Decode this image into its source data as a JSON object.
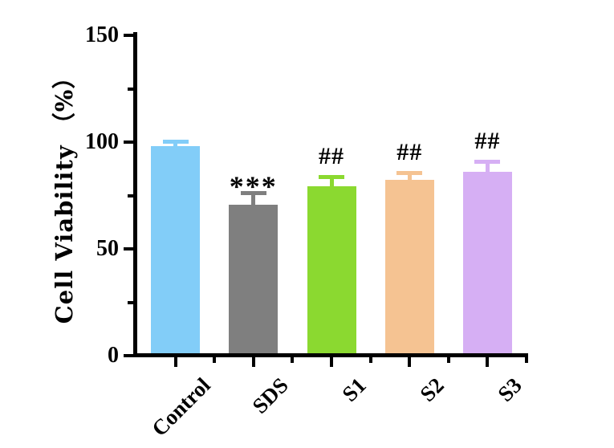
{
  "chart_data": {
    "type": "bar",
    "title": "",
    "ylabel": "Cell Viability （%）",
    "xlabel": "",
    "ylim": [
      0,
      150
    ],
    "yticks_major": [
      0,
      50,
      100,
      150
    ],
    "yticks_minor": [
      25,
      75,
      125
    ],
    "categories": [
      "Control",
      "SDS",
      "S1",
      "S2",
      "S3"
    ],
    "values": [
      98,
      70.5,
      79.5,
      82.5,
      86
    ],
    "errors": [
      2.5,
      6,
      4.3,
      3.2,
      4.8
    ],
    "bar_colors": [
      "#82CDF8",
      "#7F7F7F",
      "#8BD930",
      "#F5C392",
      "#D6AFF4"
    ],
    "annotations": [
      "",
      "***",
      "##",
      "##",
      "##"
    ],
    "grid": false,
    "legend": "none",
    "axis_color": "#000000",
    "background": "#FFFFFF"
  }
}
